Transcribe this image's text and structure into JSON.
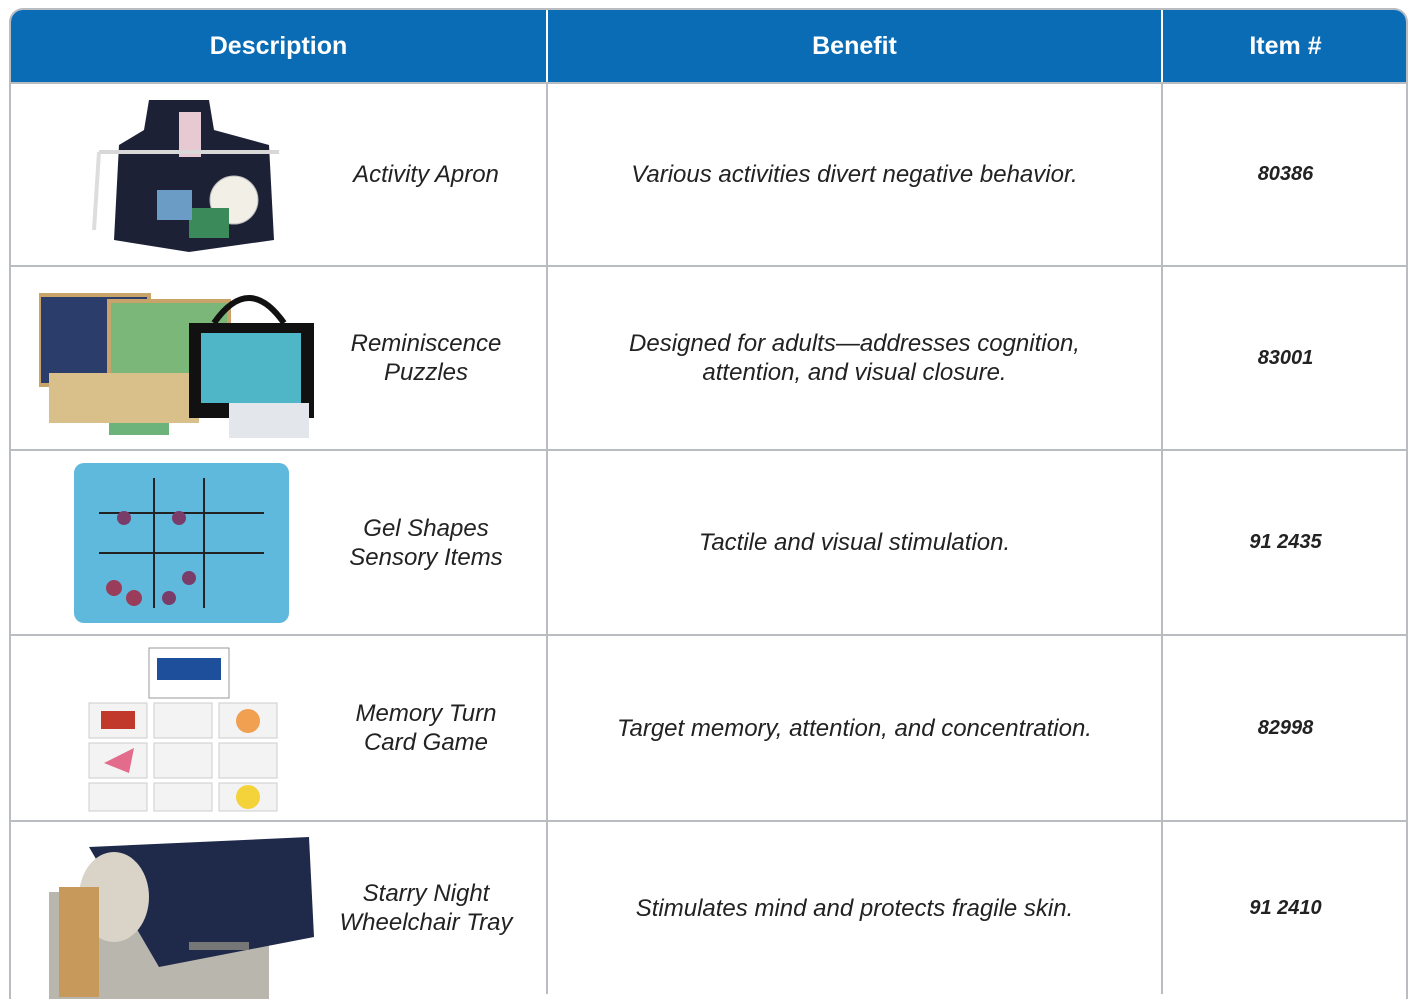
{
  "table": {
    "headers": [
      "Description",
      "Benefit",
      "Item #"
    ],
    "rows": [
      {
        "description": [
          "Activity Apron"
        ],
        "benefit": [
          "Various activities divert negative behavior."
        ],
        "item": "80386"
      },
      {
        "description": [
          "Reminiscence",
          "Puzzles"
        ],
        "benefit": [
          "Designed for adults—addresses cognition,",
          "attention, and visual closure."
        ],
        "item": "83001"
      },
      {
        "description": [
          "Gel Shapes",
          "Sensory Items"
        ],
        "benefit": [
          "Tactile and visual stimulation."
        ],
        "item": "91 2435"
      },
      {
        "description": [
          "Memory Turn",
          "Card Game"
        ],
        "benefit": [
          "Target memory, attention, and concentration."
        ],
        "item": "82998"
      },
      {
        "description": [
          "Starry Night",
          "Wheelchair Tray"
        ],
        "benefit": [
          "Stimulates mind and protects fragile skin."
        ],
        "item": "91 2410"
      }
    ]
  }
}
